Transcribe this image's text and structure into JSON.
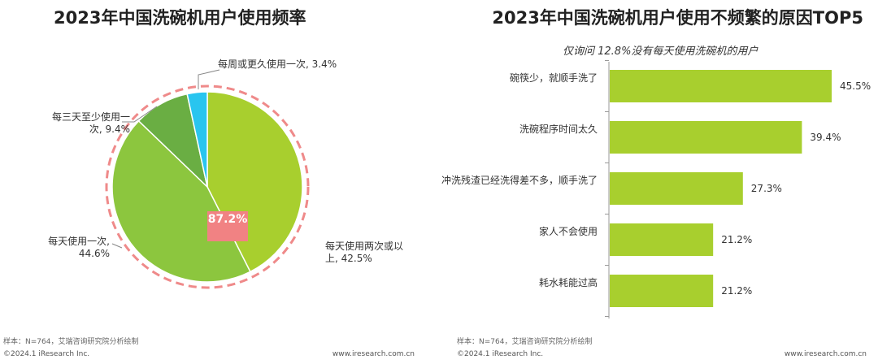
{
  "left": {
    "title": "2023年中国洗碗机用户使用频率",
    "center_label": "87.2%",
    "footnote": "样本：N=764，艾瑞咨询研究院分析绘制",
    "copyright": "©2024.1 iResearch Inc.",
    "website": "www.iresearch.com.cn",
    "slice_labels": [
      "每天使用两次或以上, 42.5%",
      "每天使用一次, 44.6%",
      "每三天至少使用一次, 9.4%",
      "每周或更久使用一次, 3.4%"
    ]
  },
  "right": {
    "title": "2023年中国洗碗机用户使用不频繁的原因TOP5",
    "subtitle": "仅询问 12.8%没有每天使用洗碗机的用户",
    "footnote": "样本：N=764，艾瑞咨询研究院分析绘制",
    "copyright": "©2024.1 iResearch Inc.",
    "website": "www.iresearch.com.cn"
  },
  "colors": {
    "slice_1": "#a8cf2e",
    "slice_2": "#8cc63e",
    "slice_3": "#6aae43",
    "slice_4": "#29c5ef",
    "dashed_ring": "#ef8a8a",
    "bar": "#a8cf2e"
  },
  "chart_data": [
    {
      "type": "pie",
      "title": "2023年中国洗碗机用户使用频率",
      "categories": [
        "每天使用两次或以上",
        "每天使用一次",
        "每三天至少使用一次",
        "每周或更久使用一次"
      ],
      "values": [
        42.5,
        44.6,
        9.4,
        3.4
      ],
      "unit": "%",
      "annotation": "87.2%"
    },
    {
      "type": "bar",
      "orientation": "horizontal",
      "title": "2023年中国洗碗机用户使用不频繁的原因TOP5",
      "categories": [
        "碗筷少，就顺手洗了",
        "洗碗程序时间太久",
        "冲洗残渣已经洗得差不多，顺手洗了",
        "家人不会使用",
        "耗水耗能过高"
      ],
      "values": [
        45.5,
        39.4,
        27.3,
        21.2,
        21.2
      ],
      "value_labels": [
        "45.5%",
        "39.4%",
        "27.3%",
        "21.2%",
        "21.2%"
      ],
      "unit": "%",
      "xlim": [
        0,
        50
      ]
    }
  ]
}
